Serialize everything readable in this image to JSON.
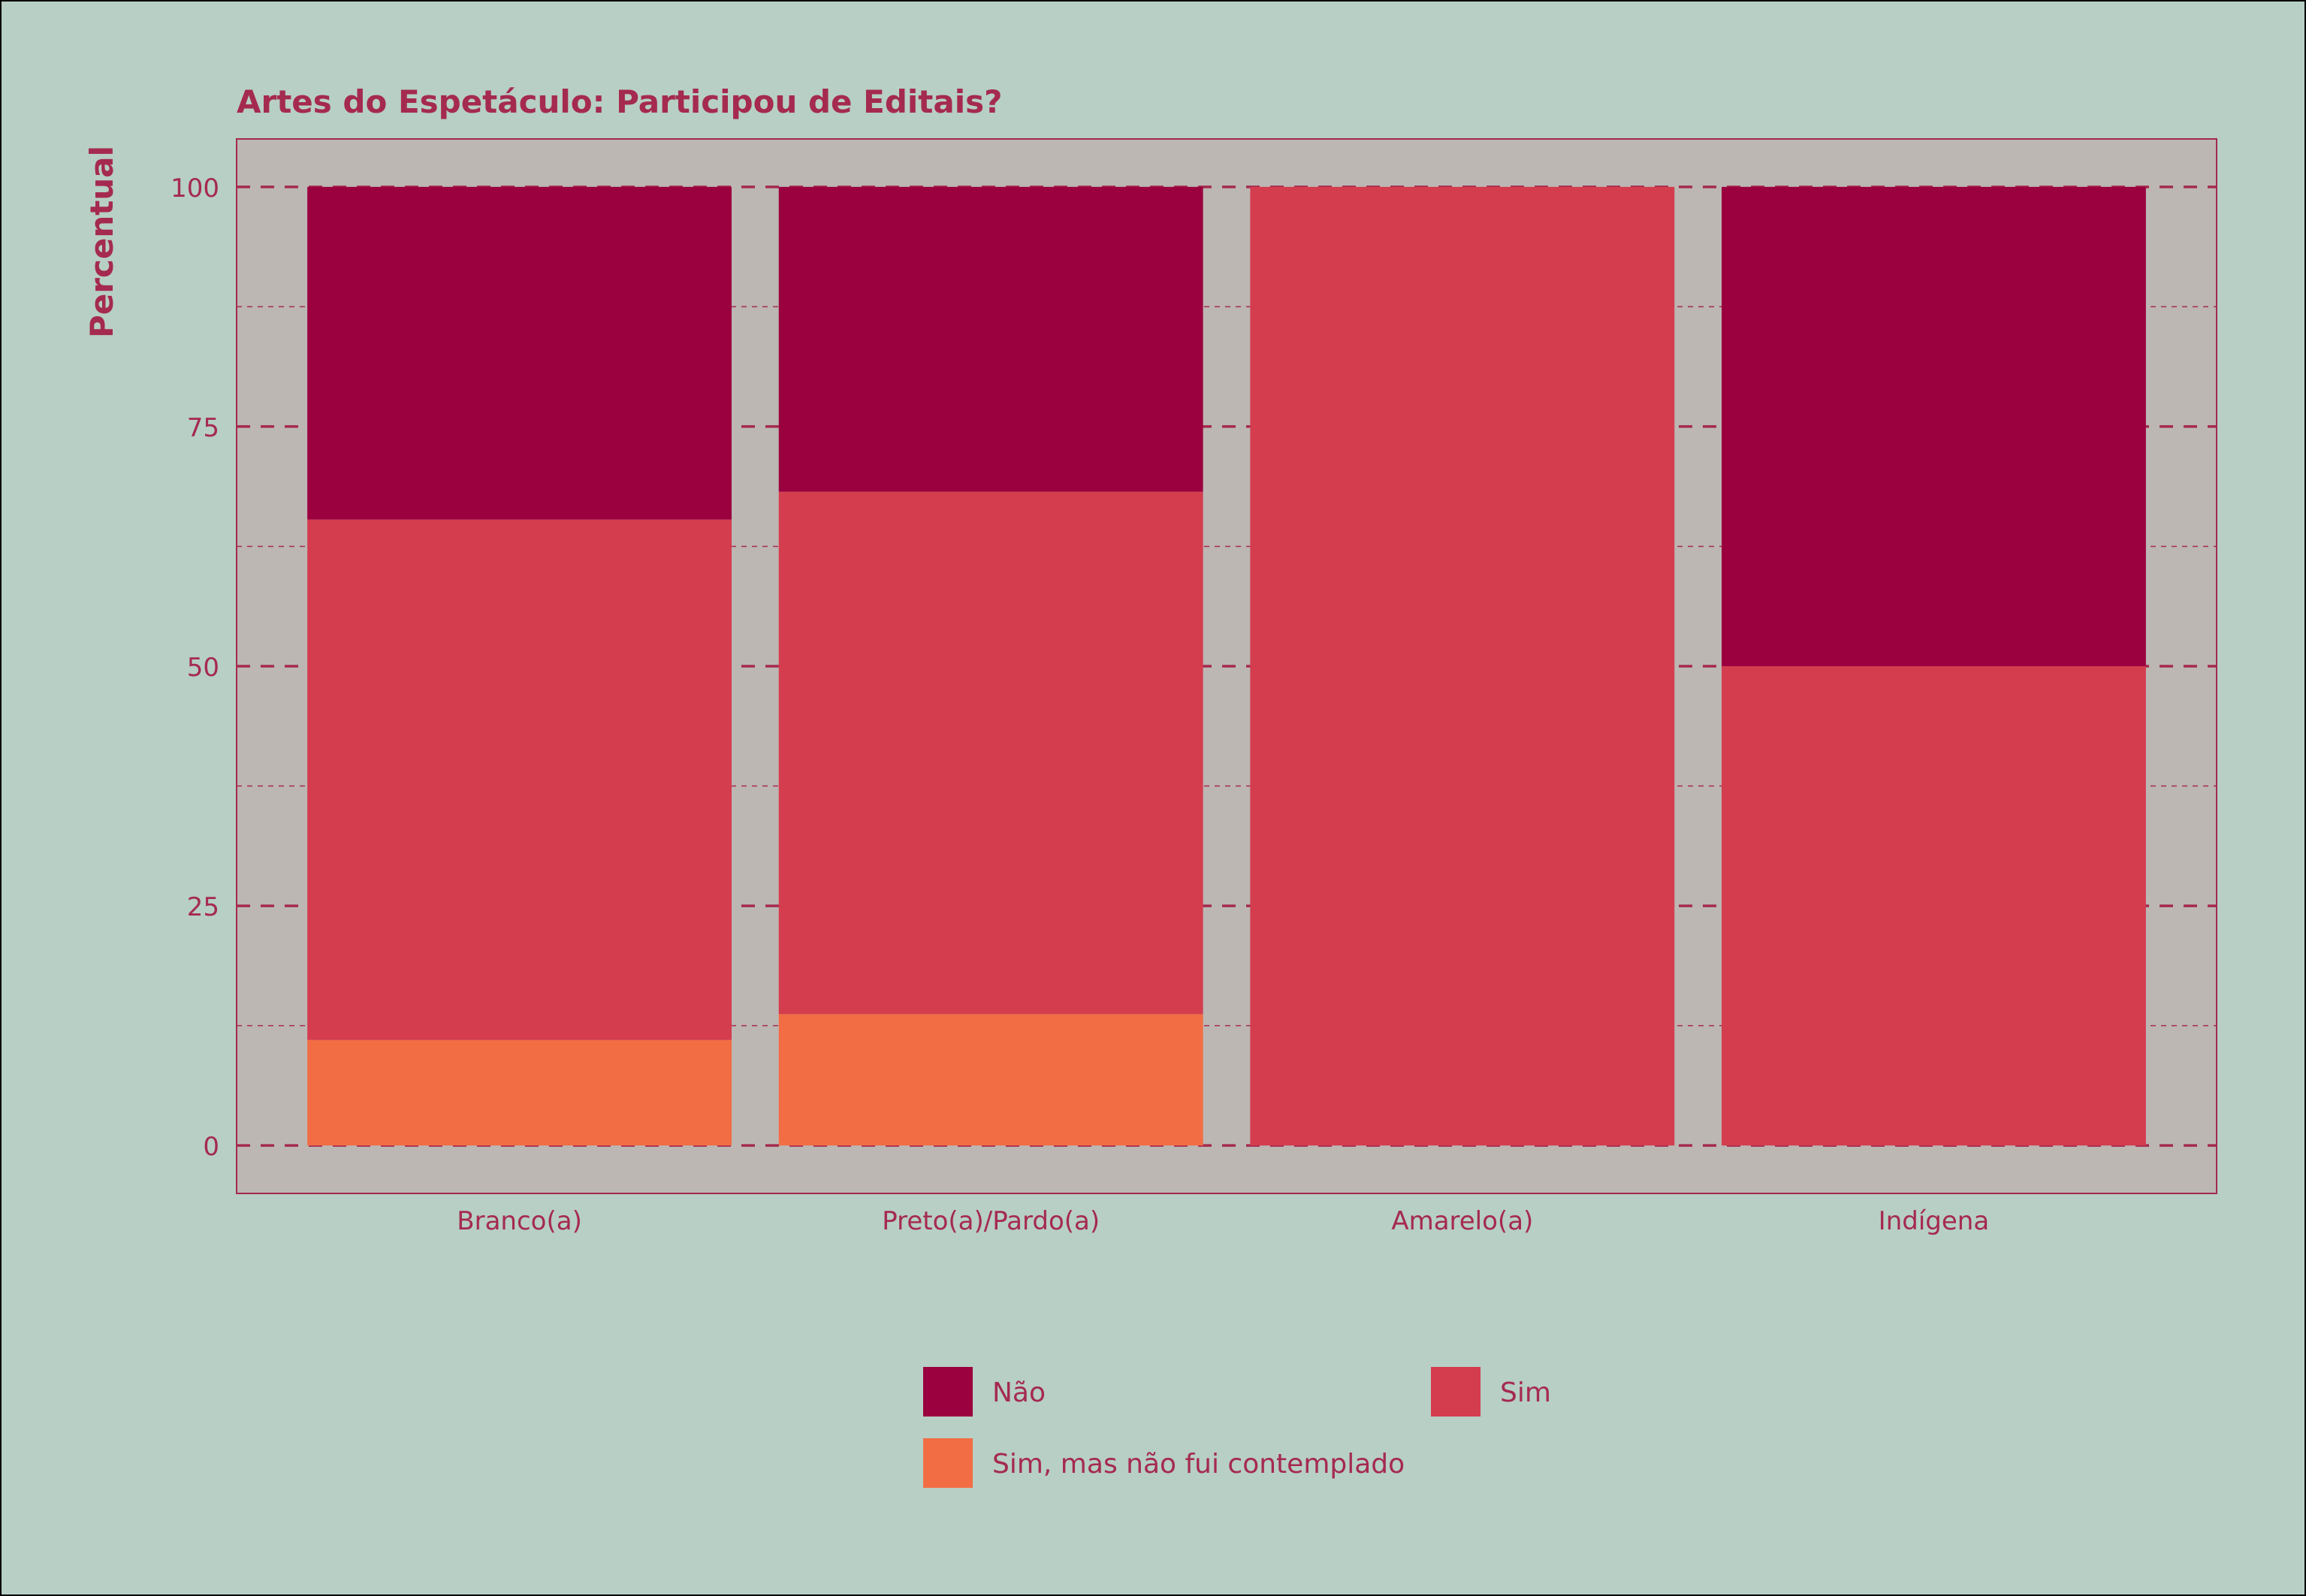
{
  "chart_data": {
    "type": "bar",
    "stacked": true,
    "title": "Artes do Espetáculo: Participou de Editais?",
    "xlabel": "",
    "ylabel": "Percentual",
    "ylim": [
      -5,
      105
    ],
    "yticks": [
      0,
      25,
      50,
      75,
      100
    ],
    "categories": [
      "Branco(a)",
      "Preto(a)/Pardo(a)",
      "Amarelo(a)",
      "Indígena"
    ],
    "series": [
      {
        "name": "Sim, mas não fui contemplado",
        "color": "#f26d44",
        "values": [
          11,
          13.7,
          0,
          0
        ]
      },
      {
        "name": "Sim",
        "color": "#d43d4e",
        "values": [
          54.3,
          54.5,
          100,
          50
        ]
      },
      {
        "name": "Não",
        "color": "#9b003f",
        "values": [
          34.7,
          31.8,
          0,
          50
        ]
      }
    ],
    "legend_order": [
      "Não",
      "Sim",
      "Sim, mas não fui contemplado"
    ],
    "legend_position": "bottom",
    "grid": true,
    "colors": {
      "background": "#b7cfc5",
      "panel": "#bcb7b3",
      "text": "#a52a4f",
      "grid": "#a52a4f"
    }
  }
}
